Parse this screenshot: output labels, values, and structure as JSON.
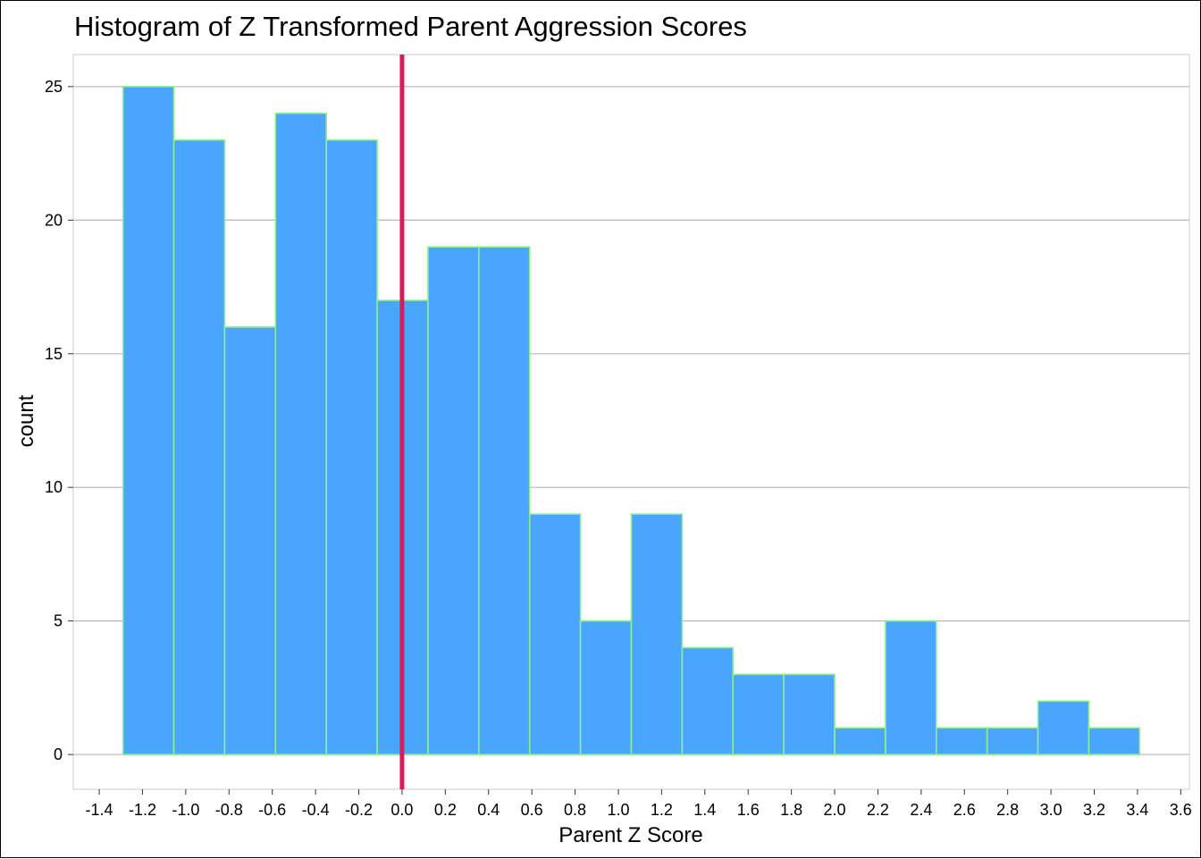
{
  "chart_data": {
    "type": "bar",
    "title": "Histogram of Z Transformed Parent Aggression Scores",
    "xlabel": "Parent Z Score",
    "ylabel": "count",
    "xlim": [
      -1.52,
      3.64
    ],
    "ylim": [
      -1.3,
      26.2
    ],
    "bin_width": 0.235,
    "bins": [
      {
        "start": -1.29,
        "end": -1.055,
        "count": 25
      },
      {
        "start": -1.055,
        "end": -0.82,
        "count": 23
      },
      {
        "start": -0.82,
        "end": -0.585,
        "count": 16
      },
      {
        "start": -0.585,
        "end": -0.35,
        "count": 24
      },
      {
        "start": -0.35,
        "end": -0.115,
        "count": 23
      },
      {
        "start": -0.115,
        "end": 0.12,
        "count": 17
      },
      {
        "start": 0.12,
        "end": 0.355,
        "count": 19
      },
      {
        "start": 0.355,
        "end": 0.59,
        "count": 19
      },
      {
        "start": 0.59,
        "end": 0.825,
        "count": 9
      },
      {
        "start": 0.825,
        "end": 1.06,
        "count": 5
      },
      {
        "start": 1.06,
        "end": 1.295,
        "count": 9
      },
      {
        "start": 1.295,
        "end": 1.53,
        "count": 4
      },
      {
        "start": 1.53,
        "end": 1.765,
        "count": 3
      },
      {
        "start": 1.765,
        "end": 2.0,
        "count": 3
      },
      {
        "start": 2.0,
        "end": 2.235,
        "count": 1
      },
      {
        "start": 2.235,
        "end": 2.47,
        "count": 5
      },
      {
        "start": 2.47,
        "end": 2.705,
        "count": 1
      },
      {
        "start": 2.705,
        "end": 2.94,
        "count": 1
      },
      {
        "start": 2.94,
        "end": 3.175,
        "count": 2
      },
      {
        "start": 3.175,
        "end": 3.41,
        "count": 1
      }
    ],
    "x_ticks": [
      -1.4,
      -1.2,
      -1.0,
      -0.8,
      -0.6,
      -0.4,
      -0.2,
      0.0,
      0.2,
      0.4,
      0.6,
      0.8,
      1.0,
      1.2,
      1.4,
      1.6,
      1.8,
      2.0,
      2.2,
      2.4,
      2.6,
      2.8,
      3.0,
      3.2,
      3.4,
      3.6
    ],
    "x_tick_labels": [
      "-1.4",
      "-1.2",
      "-1.0",
      "-0.8",
      "-0.6",
      "-0.4",
      "-0.2",
      "0.0",
      "0.2",
      "0.4",
      "0.6",
      "0.8",
      "1.0",
      "1.2",
      "1.4",
      "1.6",
      "1.8",
      "2.0",
      "2.2",
      "2.4",
      "2.6",
      "2.8",
      "3.0",
      "3.2",
      "3.4",
      "3.6"
    ],
    "y_ticks": [
      0,
      5,
      10,
      15,
      20,
      25
    ],
    "y_tick_labels": [
      "0",
      "5",
      "10",
      "15",
      "20",
      "25"
    ],
    "reference_line": {
      "x": 0.0
    },
    "grid": "horizontal major",
    "legend": "none",
    "colors": {
      "bar_fill": "#4aa6fc",
      "bar_outline": "#90ee90",
      "reference_line": "#d81b5a",
      "grid": "#bebebe",
      "panel_border": "#cccccc",
      "axis_text": "#000000"
    }
  }
}
